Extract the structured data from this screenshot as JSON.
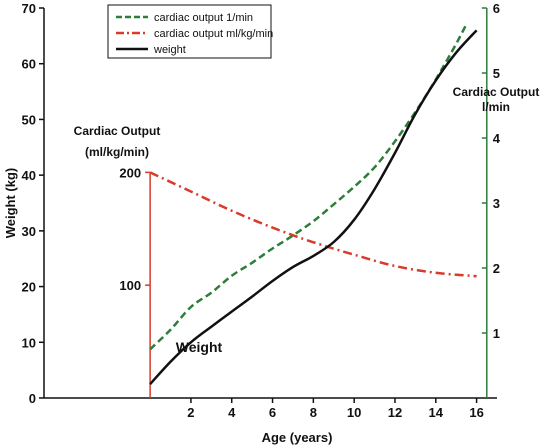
{
  "chart_data": {
    "type": "line",
    "x_axis": {
      "label": "Age (years)",
      "ticks": [
        2,
        4,
        6,
        8,
        10,
        12,
        14,
        16
      ],
      "range": [
        -5.2,
        17
      ]
    },
    "y_axis_left": {
      "label": "Weight (kg)",
      "ticks": [
        0,
        10,
        20,
        30,
        40,
        50,
        60,
        70
      ],
      "range": [
        0,
        70
      ]
    },
    "y_axis_right": {
      "label_line1": "Cardiac Output",
      "label_line2": "l/min",
      "ticks": [
        1,
        2,
        3,
        4,
        5,
        6
      ],
      "range": [
        0,
        6.0
      ]
    },
    "y_axis_inner": {
      "label_line1": "Cardiac Output",
      "label_line2": "(ml/kg/min)",
      "ticks": [
        100,
        200
      ],
      "scale": [
        0,
        200
      ],
      "weight_equivalent": [
        0,
        40.5
      ]
    },
    "annotations": [
      {
        "text": "Weight",
        "x": 3,
        "y": 8.5
      }
    ],
    "legend": {
      "position": "top-left",
      "entries": [
        "cardiac output 1/min",
        "cardiac output ml/kg/min",
        "weight"
      ]
    },
    "series": [
      {
        "name": "cardiac output 1/min",
        "axis": "right",
        "color": "#2e7d3a",
        "dash": "dashed",
        "x": [
          0,
          1,
          2,
          3,
          4,
          5,
          6,
          7,
          8,
          9,
          10,
          11,
          12,
          13,
          14,
          15,
          15.5
        ],
        "y": [
          0.75,
          1.05,
          1.4,
          1.62,
          1.88,
          2.08,
          2.3,
          2.5,
          2.72,
          2.98,
          3.25,
          3.55,
          3.95,
          4.4,
          4.9,
          5.45,
          5.75
        ]
      },
      {
        "name": "cardiac output ml/kg/min",
        "axis": "inner",
        "color": "#d93a2b",
        "dash": "dashdot",
        "x": [
          0,
          2,
          4,
          6,
          8,
          10,
          12,
          14,
          16
        ],
        "y": [
          200,
          183,
          166,
          151,
          138,
          127,
          117,
          111,
          108
        ]
      },
      {
        "name": "weight",
        "axis": "left",
        "color": "#111111",
        "dash": "solid",
        "x": [
          0,
          1,
          2,
          3,
          4,
          5,
          6,
          7,
          8,
          9,
          10,
          11,
          12,
          13,
          14,
          15,
          16
        ],
        "y": [
          2.5,
          6.5,
          10,
          12.8,
          15.5,
          18.2,
          21,
          23.5,
          25.5,
          28,
          32,
          37.5,
          44,
          51,
          57,
          62,
          66
        ]
      }
    ],
    "colors": {
      "left_axis": "#111111",
      "right_axis": "#2e7d3a",
      "inner_axis": "#d93a2b"
    }
  }
}
